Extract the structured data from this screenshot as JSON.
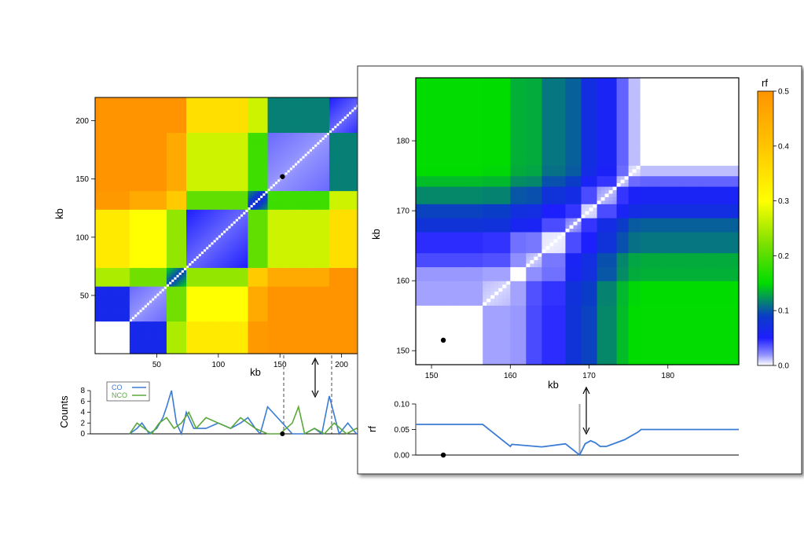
{
  "chart_data": [
    {
      "type": "heatmap",
      "panel": "overview",
      "xlabel": "kb",
      "ylabel": "kb",
      "xlim": [
        0,
        220
      ],
      "ylim": [
        0,
        220
      ],
      "x_ticks": [
        50,
        100,
        150,
        200
      ],
      "y_ticks": [
        50,
        100,
        150,
        200
      ],
      "marker_point": [
        152,
        152
      ],
      "value_scale": "rf",
      "blocks": [
        {
          "start": 0,
          "end": 28,
          "rf": 0.0
        },
        {
          "start": 28,
          "end": 58,
          "rf": 0.03
        },
        {
          "start": 58,
          "end": 75,
          "rf": 0.15
        },
        {
          "start": 75,
          "end": 125,
          "rf": 0.05
        },
        {
          "start": 125,
          "end": 140,
          "rf": 0.12
        },
        {
          "start": 140,
          "end": 190,
          "rf": 0.03
        },
        {
          "start": 190,
          "end": 220,
          "rf": 0.05
        }
      ]
    },
    {
      "type": "line",
      "panel": "event-counts",
      "ylabel": "Counts",
      "ylim": [
        0,
        8
      ],
      "y_ticks": [
        0,
        2,
        4,
        6,
        8
      ],
      "series": [
        {
          "name": "CO",
          "color": "#3a7bd5",
          "x": [
            28,
            34,
            38,
            44,
            50,
            55,
            58,
            62,
            66,
            70,
            74,
            80,
            90,
            100,
            110,
            118,
            124,
            130,
            134,
            140,
            160,
            170,
            178,
            184,
            190,
            198,
            205,
            212,
            220
          ],
          "values": [
            0,
            1,
            2,
            0,
            1,
            3,
            5,
            8,
            2,
            0,
            4,
            1,
            1,
            2,
            1,
            2,
            3,
            1,
            0,
            5,
            0,
            0,
            1,
            0,
            7,
            0,
            2,
            0,
            0
          ]
        },
        {
          "name": "NCO",
          "color": "#5aa83a",
          "x": [
            28,
            34,
            40,
            46,
            52,
            58,
            64,
            70,
            76,
            82,
            90,
            100,
            110,
            118,
            124,
            130,
            140,
            150,
            160,
            165,
            170,
            178,
            186,
            194,
            204,
            212,
            220
          ],
          "values": [
            0,
            2,
            1,
            0,
            2,
            3,
            1,
            2,
            4,
            1,
            3,
            2,
            1,
            3,
            2,
            1,
            0,
            0,
            2,
            5,
            0,
            1,
            0,
            2,
            0,
            1,
            0
          ]
        }
      ]
    },
    {
      "type": "heatmap",
      "panel": "zoom",
      "xlabel": "kb",
      "ylabel": "kb",
      "xlim": [
        148,
        189
      ],
      "ylim": [
        148,
        189
      ],
      "x_ticks": [
        150,
        160,
        170,
        180
      ],
      "y_ticks": [
        150,
        160,
        170,
        180
      ],
      "marker_point": [
        151.5,
        151.5
      ],
      "value_scale": "rf",
      "blocks": [
        {
          "start": 148,
          "end": 156.5,
          "rf": 0.0
        },
        {
          "start": 156.5,
          "end": 160,
          "rf": 0.012
        },
        {
          "start": 160,
          "end": 162,
          "rf": 0.0
        },
        {
          "start": 162,
          "end": 164.2,
          "rf": 0.015
        },
        {
          "start": 164.2,
          "end": 167,
          "rf": 0.005
        },
        {
          "start": 167,
          "end": 168.8,
          "rf": 0.025
        },
        {
          "start": 168.8,
          "end": 171,
          "rf": 0.01
        },
        {
          "start": 171,
          "end": 173.5,
          "rf": 0.02
        },
        {
          "start": 173.5,
          "end": 175,
          "rf": 0.015
        },
        {
          "start": 175,
          "end": 176.5,
          "rf": 0.008
        },
        {
          "start": 176.5,
          "end": 189,
          "rf": 0.0
        }
      ]
    },
    {
      "type": "line",
      "panel": "zoom-rf",
      "xlabel": "",
      "ylabel": "rf",
      "xlim": [
        148,
        189
      ],
      "ylim": [
        0,
        0.1
      ],
      "y_ticks": [
        "0.00",
        "0.05",
        "0.10"
      ],
      "marker_x": 151.5,
      "vline_x": 168.8,
      "series": [
        {
          "color": "#3a7bd5",
          "x": [
            148,
            151,
            156.5,
            160,
            160.2,
            164,
            167,
            168.8,
            169.5,
            170.2,
            170.8,
            171.4,
            172.2,
            174.5,
            176.2,
            176.6,
            189
          ],
          "values": [
            0.06,
            0.06,
            0.06,
            0.017,
            0.021,
            0.016,
            0.022,
            0.0,
            0.022,
            0.028,
            0.024,
            0.017,
            0.017,
            0.03,
            0.045,
            0.05,
            0.05
          ]
        }
      ]
    }
  ],
  "colorbar": {
    "title": "rf",
    "min": 0,
    "max": 0.5,
    "ticks": [
      "0.0",
      "0.1",
      "0.2",
      "0.3",
      "0.4",
      "0.5"
    ],
    "stops": [
      {
        "v": 0.0,
        "color": "#ffffff"
      },
      {
        "v": 0.02,
        "color": "#8f8fff"
      },
      {
        "v": 0.05,
        "color": "#1e1eff"
      },
      {
        "v": 0.09,
        "color": "#0a3cc8"
      },
      {
        "v": 0.15,
        "color": "#00dc00"
      },
      {
        "v": 0.22,
        "color": "#7ae000"
      },
      {
        "v": 0.3,
        "color": "#ffff00"
      },
      {
        "v": 0.4,
        "color": "#ffc400"
      },
      {
        "v": 0.5,
        "color": "#ff9400"
      }
    ]
  },
  "legend": {
    "co": "CO",
    "nco": "NCO"
  }
}
